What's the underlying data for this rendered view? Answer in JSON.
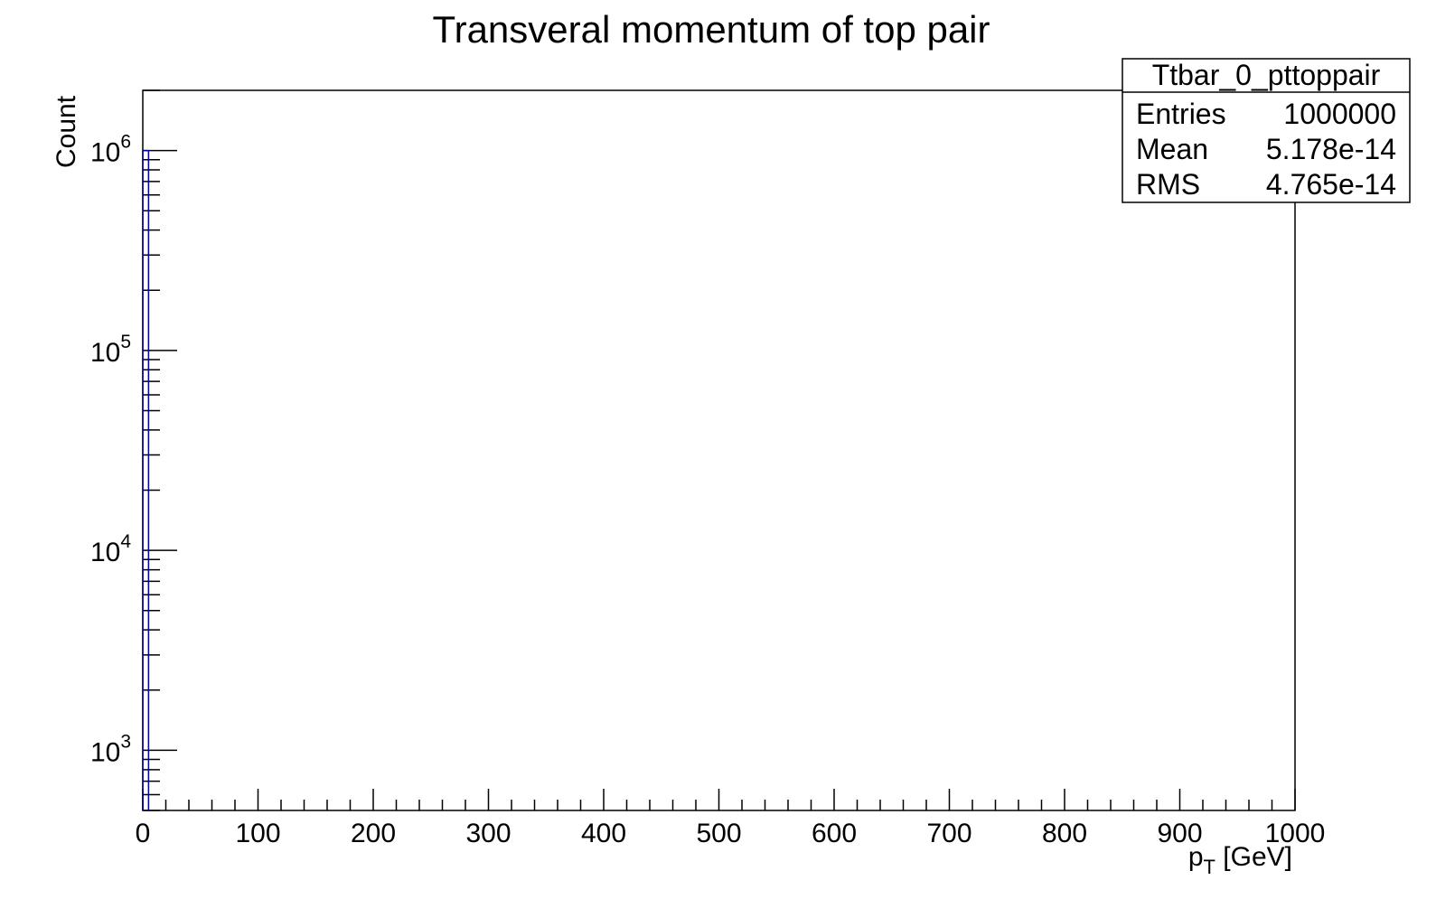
{
  "chart_data": {
    "type": "bar",
    "title": "Transveral momentum of top pair",
    "xlabel": {
      "main": "p",
      "sub": "T",
      "rest": " [GeV]"
    },
    "ylabel": "Count",
    "xlim": [
      0,
      1000
    ],
    "ylim": [
      500,
      2000000
    ],
    "yscale": "log",
    "x_ticks": [
      "0",
      "100",
      "200",
      "300",
      "400",
      "500",
      "600",
      "700",
      "800",
      "900",
      "1000"
    ],
    "y_ticks": [
      {
        "value": 1000,
        "base": "10",
        "exp": "3"
      },
      {
        "value": 10000,
        "base": "10",
        "exp": "4"
      },
      {
        "value": 100000,
        "base": "10",
        "exp": "5"
      },
      {
        "value": 1000000,
        "base": "10",
        "exp": "6"
      }
    ],
    "grid": false,
    "series": [
      {
        "bins": [
          {
            "x0": 0,
            "x1": 5,
            "count": 1000000
          }
        ],
        "color": "#000099"
      }
    ],
    "stats_box": {
      "name": "Ttbar_0_pttoppair",
      "placement": "top-right",
      "rows": [
        {
          "label": "Entries",
          "value": "1000000"
        },
        {
          "label": "Mean",
          "value": "5.178e-14"
        },
        {
          "label": "RMS",
          "value": "4.765e-14"
        }
      ]
    }
  }
}
